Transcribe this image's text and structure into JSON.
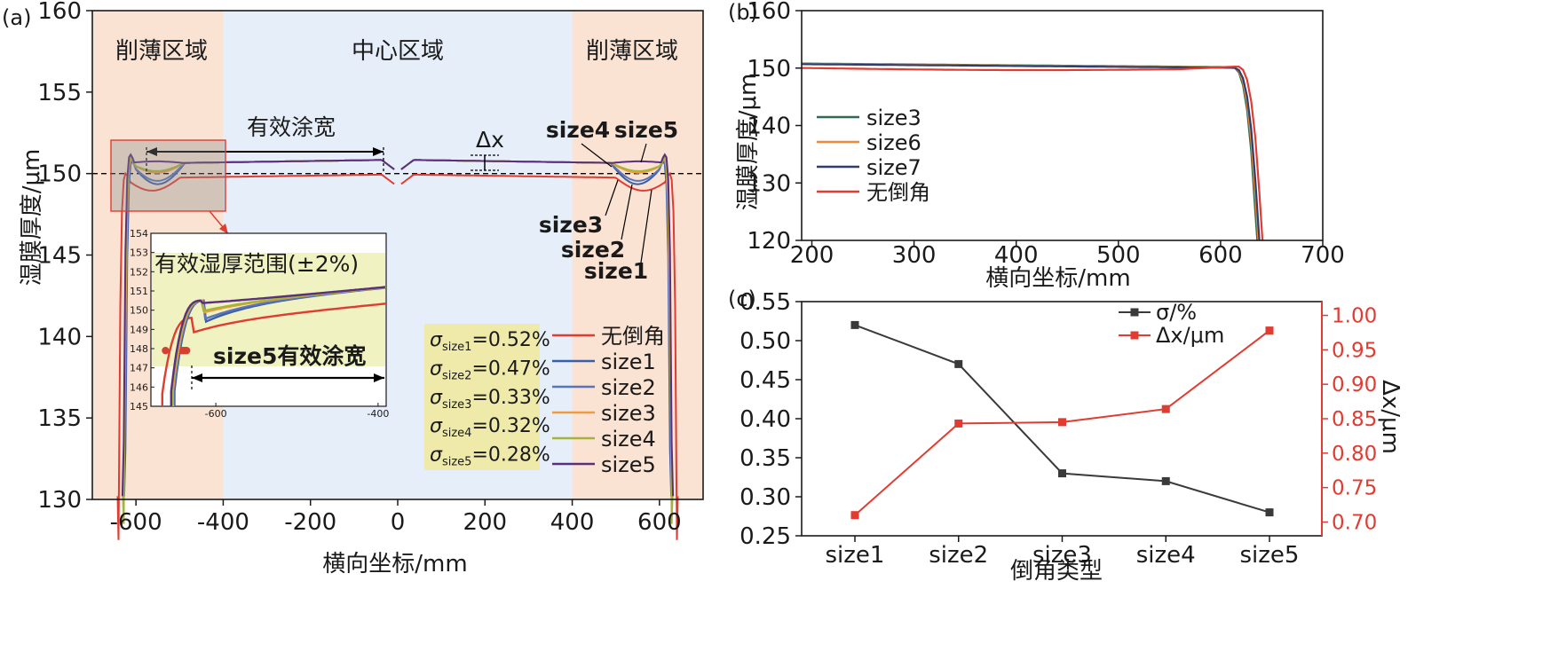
{
  "chart_data": [
    {
      "panel": "(a)",
      "type": "line",
      "xlabel": "横向坐标/mm",
      "ylabel": "湿膜厚度/μm",
      "xlim": [
        -700,
        700
      ],
      "ylim": [
        130,
        160
      ],
      "xticks": [
        -600,
        -400,
        -200,
        0,
        200,
        400,
        600
      ],
      "xtick_labels": [
        "-600",
        "-400",
        "-200",
        "0",
        "200",
        "400",
        "600"
      ],
      "yticks": [
        130,
        135,
        140,
        145,
        150,
        155,
        160
      ],
      "zones": [
        {
          "label": "削薄区域",
          "x": [
            -700,
            -400
          ],
          "color": "#fbe3d4"
        },
        {
          "label": "中心区域",
          "x": [
            -400,
            400
          ],
          "color": "#e5eef9"
        },
        {
          "label": "削薄区域",
          "x": [
            400,
            700
          ],
          "color": "#fbe3d4"
        }
      ],
      "reference_line": 150,
      "annotations": {
        "effective_width": "有效涂宽",
        "delta_x": "Δx",
        "size4": "size4",
        "size5": "size5",
        "size3": "size3",
        "size2": "size2",
        "size1": "size1"
      },
      "sigma_labels": [
        {
          "sym": "σ",
          "sub": "size1",
          "val": "=0.52%"
        },
        {
          "sym": "σ",
          "sub": "size2",
          "val": "=0.47%"
        },
        {
          "sym": "σ",
          "sub": "size3",
          "val": "=0.33%"
        },
        {
          "sym": "σ",
          "sub": "size4",
          "val": "=0.32%"
        },
        {
          "sym": "σ",
          "sub": "size5",
          "val": "=0.28%"
        }
      ],
      "legend": "bottom-right",
      "series": [
        {
          "name": "无倒角",
          "color": "#e03c31",
          "edge": 640,
          "dip": 0.8,
          "level": 150.0
        },
        {
          "name": "size1",
          "color": "#3b5ea8",
          "edge": 625,
          "dip": 1.3,
          "level": 150.9
        },
        {
          "name": "size2",
          "color": "#5a74b8",
          "edge": 626,
          "dip": 1.1,
          "level": 150.9
        },
        {
          "name": "size3",
          "color": "#ef9b42",
          "edge": 627,
          "dip": 0.6,
          "level": 150.9
        },
        {
          "name": "size4",
          "color": "#a6b23a",
          "edge": 628,
          "dip": 0.5,
          "level": 150.9
        },
        {
          "name": "size5",
          "color": "#5a2f7d",
          "edge": 629,
          "dip": -0.1,
          "level": 150.9
        }
      ],
      "inset": {
        "title": "有效湿厚范围(±2%)",
        "label": "size5有效涂宽",
        "xlim": [
          -680,
          -390
        ],
        "ylim": [
          145,
          154
        ],
        "xticks": [
          -600,
          -400
        ],
        "yticks": [
          145,
          146,
          147,
          148,
          149,
          150,
          151,
          152,
          153,
          154
        ]
      }
    },
    {
      "panel": "(b)",
      "type": "line",
      "xlabel": "横向坐标/mm",
      "ylabel": "湿膜厚度/μm",
      "xlim": [
        190,
        700
      ],
      "ylim": [
        120,
        160
      ],
      "xticks": [
        200,
        300,
        400,
        500,
        600,
        700
      ],
      "yticks": [
        120,
        130,
        140,
        150,
        160
      ],
      "legend": "center-left",
      "series": [
        {
          "name": "size3",
          "color": "#2e6b4f",
          "edge": 636
        },
        {
          "name": "size6",
          "color": "#ef8a3a",
          "edge": 637
        },
        {
          "name": "size7",
          "color": "#2f3e6e",
          "edge": 638
        },
        {
          "name": "无倒角",
          "color": "#e03c31",
          "edge": 641
        }
      ]
    },
    {
      "panel": "(c)",
      "type": "line",
      "xlabel": "倒角类型",
      "ylabel_left": "",
      "ylabel_right": "Δx/μm",
      "categories": [
        "size1",
        "size2",
        "size3",
        "size4",
        "size5"
      ],
      "ylim_left": [
        0.25,
        0.55
      ],
      "yticks_left": [
        0.25,
        0.3,
        0.35,
        0.4,
        0.45,
        0.5,
        0.55
      ],
      "ylim_right": [
        0.68,
        1.02
      ],
      "yticks_right": [
        0.7,
        0.75,
        0.8,
        0.85,
        0.9,
        0.95,
        1.0
      ],
      "legend": "top-center",
      "series": [
        {
          "name": "σ/%",
          "color": "#3a3a3a",
          "axis": "left",
          "values": [
            0.52,
            0.47,
            0.33,
            0.32,
            0.28
          ]
        },
        {
          "name": "Δx/μm",
          "color": "#e03c31",
          "axis": "right",
          "values": [
            0.71,
            0.843,
            0.845,
            0.864,
            0.978
          ]
        }
      ]
    }
  ]
}
